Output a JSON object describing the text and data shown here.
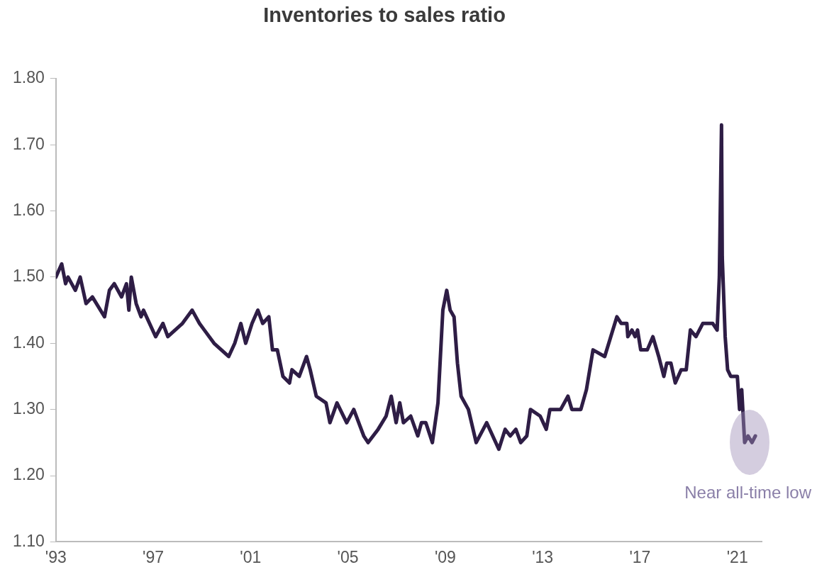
{
  "chart_data": {
    "type": "line",
    "title": "Inventories to sales ratio",
    "x": [
      1993.0,
      1993.24,
      1993.4,
      1993.5,
      1993.8,
      1994.0,
      1994.24,
      1994.5,
      1995.0,
      1995.2,
      1995.4,
      1995.7,
      1995.9,
      1996.0,
      1996.1,
      1996.3,
      1996.5,
      1996.6,
      1997.1,
      1997.4,
      1997.6,
      1997.9,
      1998.2,
      1998.6,
      1998.9,
      1999.1,
      1999.5,
      1999.8,
      2000.1,
      2000.35,
      2000.6,
      2000.8,
      2001.06,
      2001.3,
      2001.5,
      2001.75,
      2001.9,
      2002.1,
      2002.33,
      2002.6,
      2002.7,
      2003.0,
      2003.3,
      2003.45,
      2003.7,
      2004.1,
      2004.26,
      2004.55,
      2004.95,
      2005.24,
      2005.65,
      2005.83,
      2006.24,
      2006.57,
      2006.78,
      2006.98,
      2007.13,
      2007.28,
      2007.58,
      2007.87,
      2008.02,
      2008.2,
      2008.47,
      2008.7,
      2008.9,
      2009.06,
      2009.2,
      2009.36,
      2009.5,
      2009.65,
      2009.95,
      2010.27,
      2010.7,
      2011.2,
      2011.46,
      2011.67,
      2011.9,
      2012.1,
      2012.35,
      2012.5,
      2012.9,
      2013.15,
      2013.3,
      2013.74,
      2014.04,
      2014.2,
      2014.57,
      2014.8,
      2015.07,
      2015.55,
      2015.8,
      2016.05,
      2016.23,
      2016.46,
      2016.5,
      2016.67,
      2016.8,
      2016.9,
      2017.03,
      2017.3,
      2017.53,
      2017.77,
      2017.98,
      2018.1,
      2018.27,
      2018.45,
      2018.69,
      2018.9,
      2019.07,
      2019.3,
      2019.58,
      2019.99,
      2020.17,
      2020.26,
      2020.35,
      2020.38,
      2020.5,
      2020.6,
      2020.73,
      2021.0,
      2021.09,
      2021.18,
      2021.3,
      2021.44,
      2021.6,
      2021.74
    ],
    "series": [
      {
        "color": "#2e1d45",
        "values": [
          1.5,
          1.52,
          1.49,
          1.5,
          1.48,
          1.5,
          1.46,
          1.47,
          1.44,
          1.48,
          1.49,
          1.47,
          1.49,
          1.45,
          1.5,
          1.46,
          1.44,
          1.45,
          1.41,
          1.43,
          1.41,
          1.42,
          1.43,
          1.45,
          1.43,
          1.42,
          1.4,
          1.39,
          1.38,
          1.4,
          1.43,
          1.4,
          1.43,
          1.45,
          1.43,
          1.44,
          1.39,
          1.39,
          1.35,
          1.34,
          1.36,
          1.35,
          1.38,
          1.36,
          1.32,
          1.31,
          1.28,
          1.31,
          1.28,
          1.3,
          1.26,
          1.25,
          1.27,
          1.29,
          1.32,
          1.28,
          1.31,
          1.28,
          1.29,
          1.26,
          1.28,
          1.28,
          1.25,
          1.31,
          1.45,
          1.48,
          1.45,
          1.44,
          1.37,
          1.32,
          1.3,
          1.25,
          1.28,
          1.24,
          1.27,
          1.26,
          1.27,
          1.25,
          1.26,
          1.3,
          1.29,
          1.27,
          1.3,
          1.3,
          1.32,
          1.3,
          1.3,
          1.33,
          1.39,
          1.38,
          1.41,
          1.44,
          1.43,
          1.43,
          1.41,
          1.42,
          1.41,
          1.42,
          1.39,
          1.39,
          1.41,
          1.38,
          1.35,
          1.37,
          1.37,
          1.34,
          1.36,
          1.36,
          1.42,
          1.41,
          1.43,
          1.43,
          1.42,
          1.5,
          1.73,
          1.53,
          1.41,
          1.36,
          1.35,
          1.35,
          1.3,
          1.33,
          1.25,
          1.26,
          1.25,
          1.26
        ]
      }
    ],
    "xlim": [
      1993,
      2022
    ],
    "xticks": [
      {
        "value": 1993,
        "label": "'93"
      },
      {
        "value": 1997,
        "label": "'97"
      },
      {
        "value": 2001,
        "label": "'01"
      },
      {
        "value": 2005,
        "label": "'05"
      },
      {
        "value": 2009,
        "label": "'09"
      },
      {
        "value": 2013,
        "label": "'13"
      },
      {
        "value": 2017,
        "label": "'17"
      },
      {
        "value": 2021,
        "label": "'21"
      }
    ],
    "ylim": [
      1.1,
      1.8
    ],
    "yticks": [
      {
        "value": 1.1,
        "label": "1.10"
      },
      {
        "value": 1.2,
        "label": "1.20"
      },
      {
        "value": 1.3,
        "label": "1.30"
      },
      {
        "value": 1.4,
        "label": "1.40"
      },
      {
        "value": 1.5,
        "label": "1.50"
      },
      {
        "value": 1.6,
        "label": "1.60"
      },
      {
        "value": 1.7,
        "label": "1.70"
      },
      {
        "value": 1.8,
        "label": "1.80"
      }
    ],
    "grid": false,
    "legend": false,
    "marker": "none",
    "line_style": "solid",
    "annotations": [
      {
        "text": "Near all-time low",
        "x": 2021.5,
        "y": 1.25
      }
    ]
  }
}
